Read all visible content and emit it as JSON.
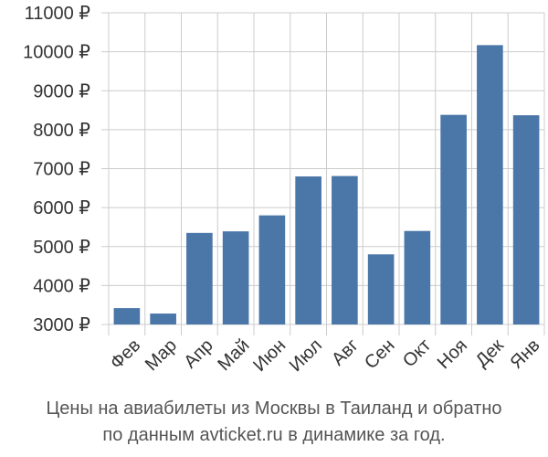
{
  "chart_data": {
    "type": "bar",
    "categories": [
      "Фев",
      "Мар",
      "Апр",
      "Май",
      "Июн",
      "Июл",
      "Авг",
      "Сен",
      "Окт",
      "Ноя",
      "Дек",
      "Янв"
    ],
    "values": [
      3420,
      3280,
      5350,
      5390,
      5800,
      6800,
      6810,
      4800,
      5400,
      8380,
      10170,
      8370
    ],
    "y_ticks": [
      3000,
      4000,
      5000,
      6000,
      7000,
      8000,
      9000,
      10000,
      11000
    ],
    "y_tick_labels": [
      "3000 ₽",
      "4000 ₽",
      "5000 ₽",
      "6000 ₽",
      "7000 ₽",
      "8000 ₽",
      "9000 ₽",
      "10000 ₽",
      "11000 ₽"
    ],
    "ylim": [
      2800,
      11000
    ],
    "grid": true,
    "colors": {
      "bar": "#4a76a8",
      "grid": "#cccccc",
      "text": "#333333"
    }
  },
  "caption": {
    "line1": "Цены на авиабилеты из Москвы в Таиланд и обратно",
    "line2": "по данным avticket.ru в динамике за год."
  }
}
